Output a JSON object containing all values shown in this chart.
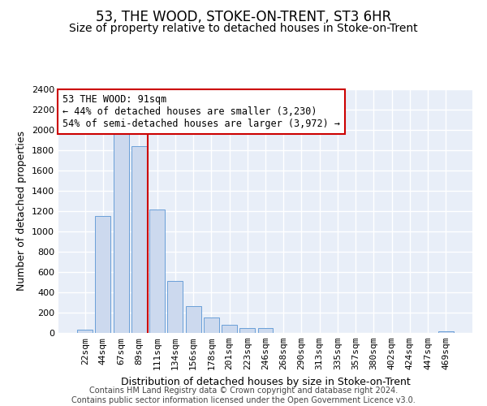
{
  "title": "53, THE WOOD, STOKE-ON-TRENT, ST3 6HR",
  "subtitle": "Size of property relative to detached houses in Stoke-on-Trent",
  "xlabel": "Distribution of detached houses by size in Stoke-on-Trent",
  "ylabel": "Number of detached properties",
  "footer_line1": "Contains HM Land Registry data © Crown copyright and database right 2024.",
  "footer_line2": "Contains public sector information licensed under the Open Government Licence v3.0.",
  "annotation_line1": "53 THE WOOD: 91sqm",
  "annotation_line2": "← 44% of detached houses are smaller (3,230)",
  "annotation_line3": "54% of semi-detached houses are larger (3,972) →",
  "bar_color": "#ccd9ee",
  "bar_edge_color": "#6a9fd8",
  "vline_color": "#cc0000",
  "categories": [
    "22sqm",
    "44sqm",
    "67sqm",
    "89sqm",
    "111sqm",
    "134sqm",
    "156sqm",
    "178sqm",
    "201sqm",
    "223sqm",
    "246sqm",
    "268sqm",
    "290sqm",
    "313sqm",
    "335sqm",
    "357sqm",
    "380sqm",
    "402sqm",
    "424sqm",
    "447sqm",
    "469sqm"
  ],
  "values": [
    30,
    1150,
    1960,
    1840,
    1220,
    510,
    265,
    155,
    80,
    50,
    45,
    0,
    0,
    0,
    0,
    0,
    0,
    0,
    0,
    0,
    20
  ],
  "ylim": [
    0,
    2400
  ],
  "yticks": [
    0,
    200,
    400,
    600,
    800,
    1000,
    1200,
    1400,
    1600,
    1800,
    2000,
    2200,
    2400
  ],
  "vline_bar_index": 3,
  "background_color": "#e8eef8",
  "grid_color": "#ffffff",
  "title_fontsize": 12,
  "subtitle_fontsize": 10,
  "axis_label_fontsize": 9,
  "tick_fontsize": 8,
  "footer_fontsize": 7,
  "annotation_fontsize": 8.5
}
